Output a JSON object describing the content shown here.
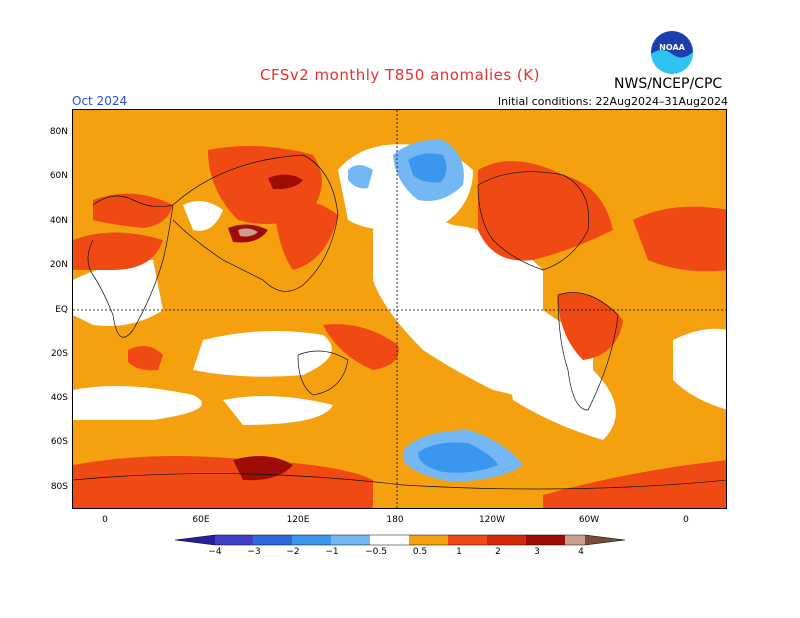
{
  "title": "CFSv2 monthly T850 anomalies (K)",
  "month": "Oct 2024",
  "initial_conditions": "Initial conditions: 22Aug2024–31Aug2024",
  "credit": "NWS/NCEP/CPC",
  "logo_icon": "noaa-logo-icon",
  "lat_labels": [
    "80N",
    "60N",
    "40N",
    "20N",
    "EQ",
    "20S",
    "40S",
    "60S",
    "80S"
  ],
  "lon_labels": [
    "0",
    "60E",
    "120E",
    "180",
    "120W",
    "60W",
    "0"
  ],
  "colorbar": {
    "labels": [
      "−4",
      "−3",
      "−2",
      "−1",
      "−0.5",
      "0.5",
      "1",
      "2",
      "3",
      "4"
    ],
    "colors": [
      "#2a1fa0",
      "#3f3fc8",
      "#2d6bdc",
      "#3a96ee",
      "#73b8f5",
      "#ffffff",
      "#f5a00f",
      "#f04a14",
      "#d42a0a",
      "#9e0d05",
      "#c9a090",
      "#7a4a3a"
    ]
  }
}
